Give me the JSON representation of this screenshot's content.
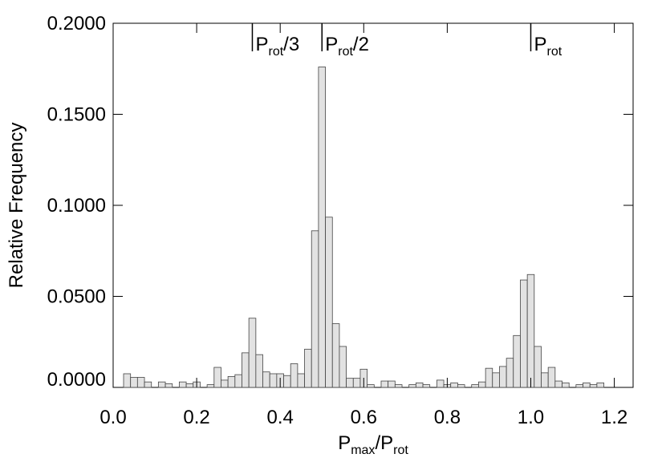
{
  "chart_data": {
    "type": "histogram",
    "ylabel": "Relative Frequency",
    "xlabel": [
      {
        "text": "P"
      },
      {
        "text": "max",
        "sub": true
      },
      {
        "text": "/P"
      },
      {
        "text": "rot",
        "sub": true
      }
    ],
    "bins": [
      0.025,
      0.0417,
      0.0583,
      0.075,
      0.0917,
      0.1083,
      0.125,
      0.1417,
      0.1583,
      0.175,
      0.1917,
      0.2083,
      0.225,
      0.2417,
      0.2583,
      0.275,
      0.2917,
      0.3083,
      0.325,
      0.3417,
      0.3583,
      0.375,
      0.3917,
      0.4083,
      0.425,
      0.4417,
      0.4583,
      0.475,
      0.4917,
      0.5083,
      0.525,
      0.5417,
      0.5583,
      0.575,
      0.5917,
      0.6083,
      0.625,
      0.6417,
      0.6583,
      0.675,
      0.6917,
      0.7083,
      0.725,
      0.7417,
      0.7583,
      0.775,
      0.7917,
      0.8083,
      0.825,
      0.8417,
      0.8583,
      0.875,
      0.8917,
      0.9083,
      0.925,
      0.9417,
      0.9583,
      0.975,
      0.9917,
      1.0083,
      1.025,
      1.0417,
      1.0583,
      1.075,
      1.0917,
      1.1083,
      1.125,
      1.1417,
      1.1583,
      1.175,
      1.1917
    ],
    "values": [
      0.0075,
      0.0055,
      0.0055,
      0.003,
      0,
      0.003,
      0.002,
      0,
      0.003,
      0.002,
      0.003,
      0,
      0.0015,
      0.011,
      0.004,
      0.006,
      0.007,
      0.019,
      0.038,
      0.018,
      0.0085,
      0.0075,
      0.0075,
      0.0065,
      0.013,
      0.0075,
      0.021,
      0.086,
      0.176,
      0.0935,
      0.035,
      0.0225,
      0.005,
      0.005,
      0.01,
      0.0015,
      0,
      0.0035,
      0.0035,
      0.0015,
      0,
      0.0015,
      0.0025,
      0.0015,
      0,
      0.004,
      0.0015,
      0.0025,
      0.0015,
      0,
      0.0015,
      0.003,
      0.0105,
      0.008,
      0.0115,
      0.016,
      0.0285,
      0.059,
      0.062,
      0.0225,
      0.008,
      0.011,
      0.0035,
      0.0025,
      0,
      0.0015,
      0.0025,
      0.0015,
      0.0025,
      0
    ],
    "color": "#e2e2e2",
    "edgecolor": "#444444",
    "xlim": [
      0,
      1.245
    ],
    "ylim": [
      0,
      0.2
    ],
    "xticks": [
      {
        "value": 0,
        "label": "0.0"
      },
      0.2,
      0.4,
      0.6,
      0.8,
      {
        "value": 1,
        "label": "1.0"
      },
      1.2
    ],
    "yticks": [
      {
        "value": 0,
        "label": "0.0000"
      },
      {
        "value": 0.05,
        "label": "0.0500"
      },
      {
        "value": 0.1,
        "label": "0.1000"
      },
      {
        "value": 0.15,
        "label": "0.1500"
      },
      {
        "value": 0.2,
        "label": "0.2000"
      }
    ],
    "annotations": [
      {
        "x": 0.3333,
        "base": "P",
        "sub": "rot",
        "tail": "/3"
      },
      {
        "x": 0.5,
        "base": "P",
        "sub": "rot",
        "tail": "/2"
      },
      {
        "x": 1,
        "base": "P",
        "sub": "rot"
      }
    ]
  }
}
